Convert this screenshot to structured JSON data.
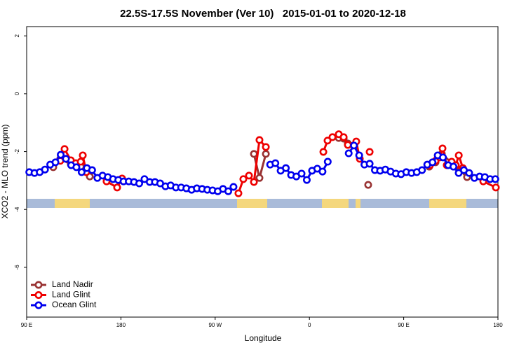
{
  "chart_data": {
    "type": "line",
    "title": "22.5S-17.5S November (Ver 10)   2015-01-01 to 2020-12-18",
    "x_label": "Longitude",
    "y_label": "XCO2 - MLO trend (ppm)",
    "xlim": [
      90,
      540
    ],
    "ylim": [
      -7.72,
      2.32
    ],
    "xticks": [
      {
        "value": 90,
        "label": "90 E"
      },
      {
        "value": 180,
        "label": "180"
      },
      {
        "value": 270,
        "label": "90 W"
      },
      {
        "value": 360,
        "label": "0"
      },
      {
        "value": 450,
        "label": "90 E"
      },
      {
        "value": 540,
        "label": "180"
      }
    ],
    "yticks": [
      -6,
      -4,
      -2,
      0,
      2
    ],
    "legend": "bottom-left",
    "series": [
      {
        "name": "Land Nadir",
        "color": "#993333",
        "x": [
          115.4,
          122.1,
          132.2,
          141.6,
          150.3,
          null,
          307.0,
          312.3,
          318.4,
          null,
          388.0,
          392.7,
          396.7,
          null,
          416.1,
          null,
          474.4,
          480.4,
          486.4,
          499.8,
          510.5
        ],
        "values": [
          -2.54,
          -2.25,
          -2.44,
          -2.52,
          -2.86,
          null,
          -2.08,
          -2.91,
          -2.08,
          null,
          -1.53,
          -1.55,
          -1.72,
          null,
          -3.15,
          null,
          -2.52,
          -2.37,
          -2.08,
          -2.52,
          -2.88
        ]
      },
      {
        "name": "Land Glint",
        "color": "#ee0000",
        "x": [
          122.1,
          126.2,
          132.2,
          136.9,
          141.6,
          143.6,
          146.9,
          null,
          166.3,
          176.4,
          181.1,
          null,
          292.2,
          296.9,
          302.3,
          307.0,
          312.3,
          318.4,
          null,
          373.3,
          377.3,
          382.0,
          388.0,
          392.7,
          396.7,
          404.7,
          408.1,
          null,
          417.5,
          null,
          475.1,
          480.4,
          484.4,
          487.1,
          491.1,
          495.8,
          499.8,
          502.6,
          506.5,
          null,
          526.0,
          538.0
        ],
        "values": [
          -2.32,
          -1.91,
          -2.3,
          -2.4,
          -2.35,
          -2.13,
          -2.71,
          null,
          -3.03,
          -3.24,
          -2.93,
          null,
          -3.44,
          -2.95,
          -2.83,
          -3.05,
          -1.6,
          -1.84,
          null,
          -2.01,
          -1.62,
          -1.5,
          -1.4,
          -1.5,
          -1.77,
          -1.65,
          -2.25,
          null,
          -2.01,
          null,
          -2.47,
          -2.32,
          -2.2,
          -1.89,
          -2.47,
          -2.35,
          -2.47,
          -2.13,
          -2.57,
          null,
          -3.03,
          -3.24
        ]
      },
      {
        "name": "Ocean Glint",
        "color": "#0000ee",
        "x": [
          92.5,
          97.5,
          102.5,
          107.5,
          112.5,
          117.5,
          122.5,
          127.5,
          132.5,
          137.5,
          142.5,
          147.5,
          152.5,
          157.5,
          162.5,
          167.5,
          172.5,
          177.5,
          182.5,
          187.5,
          192.5,
          197.5,
          202.5,
          207.5,
          212.5,
          217.5,
          222.5,
          227.5,
          232.5,
          237.5,
          242.5,
          247.5,
          252.5,
          257.5,
          262.5,
          267.5,
          272.5,
          277.5,
          282.5,
          287.5,
          null,
          322.5,
          327.5,
          332.5,
          337.5,
          342.5,
          347.5,
          352.5,
          357.5,
          362.5,
          367.5,
          372.5,
          377.5,
          null,
          397.5,
          402.5,
          407.5,
          412.5,
          417.5,
          422.5,
          427.5,
          432.5,
          437.5,
          442.5,
          447.5,
          452.5,
          457.5,
          462.5,
          467.5,
          472.5,
          477.5,
          482.5,
          487.5,
          492.5,
          497.5,
          502.5,
          507.5,
          512.5,
          517.5,
          522.5,
          527.5,
          532.5,
          537.5
        ],
        "values": [
          -2.71,
          -2.74,
          -2.71,
          -2.62,
          -2.45,
          -2.37,
          -2.11,
          -2.25,
          -2.47,
          -2.54,
          -2.71,
          -2.57,
          -2.64,
          -2.91,
          -2.83,
          -2.88,
          -2.95,
          -2.98,
          -3.03,
          -3.03,
          -3.05,
          -3.1,
          -2.95,
          -3.05,
          -3.05,
          -3.1,
          -3.2,
          -3.17,
          -3.24,
          -3.24,
          -3.27,
          -3.32,
          -3.27,
          -3.29,
          -3.32,
          -3.34,
          -3.37,
          -3.29,
          -3.37,
          -3.22,
          null,
          -2.45,
          -2.4,
          -2.66,
          -2.57,
          -2.81,
          -2.86,
          -2.76,
          -2.98,
          -2.66,
          -2.59,
          -2.69,
          -2.35,
          null,
          -2.06,
          -1.79,
          -2.13,
          -2.45,
          -2.42,
          -2.64,
          -2.66,
          -2.62,
          -2.69,
          -2.76,
          -2.78,
          -2.71,
          -2.74,
          -2.71,
          -2.64,
          -2.45,
          -2.37,
          -2.13,
          -2.2,
          -2.47,
          -2.52,
          -2.74,
          -2.64,
          -2.74,
          -2.91,
          -2.86,
          -2.88,
          -2.95,
          -2.95
        ]
      }
    ]
  }
}
